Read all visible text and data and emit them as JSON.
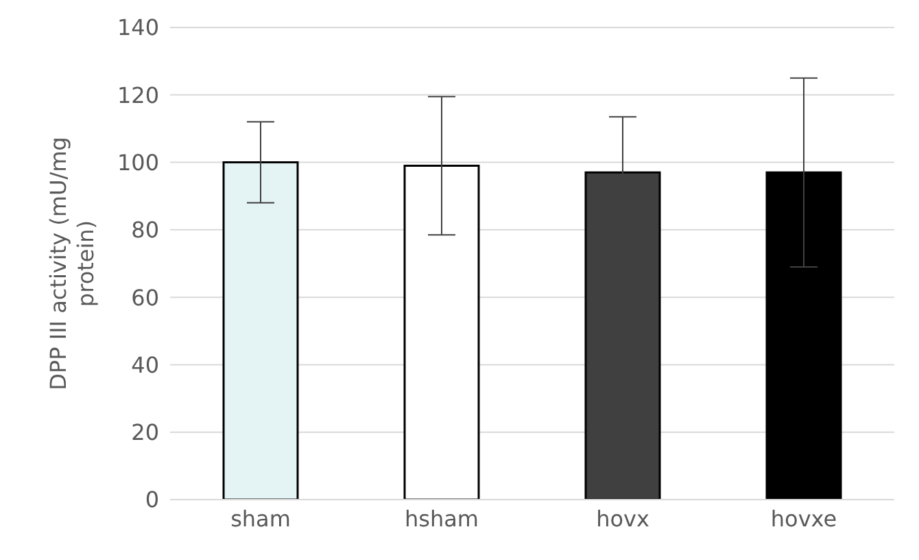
{
  "chart_data": {
    "type": "bar",
    "ylabel": "DPP III activity (mU/mg protein)",
    "categories": [
      "sham",
      "hsham",
      "hovx",
      "hovxe"
    ],
    "values": [
      100,
      99,
      97,
      97
    ],
    "colors": [
      "#e4f3f3",
      "#ffffff",
      "#404040",
      "#000000"
    ],
    "errors": [
      12,
      20.5,
      16.5,
      28
    ],
    "ylim": [
      0,
      140
    ],
    "yticks": [
      0,
      20,
      40,
      60,
      80,
      100,
      120,
      140
    ],
    "grid": "y"
  }
}
